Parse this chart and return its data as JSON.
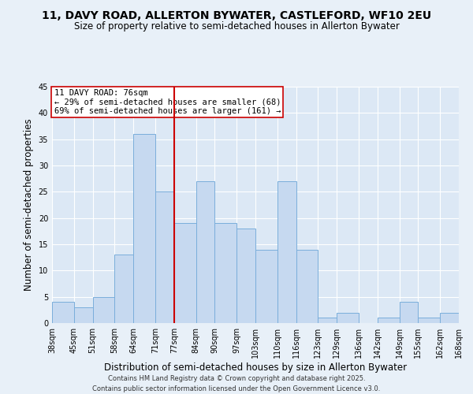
{
  "title": "11, DAVY ROAD, ALLERTON BYWATER, CASTLEFORD, WF10 2EU",
  "subtitle": "Size of property relative to semi-detached houses in Allerton Bywater",
  "xlabel": "Distribution of semi-detached houses by size in Allerton Bywater",
  "ylabel": "Number of semi-detached properties",
  "bins": [
    38,
    45,
    51,
    58,
    64,
    71,
    77,
    84,
    90,
    97,
    103,
    110,
    116,
    123,
    129,
    136,
    142,
    149,
    155,
    162,
    168
  ],
  "counts": [
    4,
    3,
    5,
    13,
    36,
    25,
    19,
    27,
    19,
    18,
    14,
    27,
    14,
    1,
    2,
    0,
    1,
    4,
    1,
    2
  ],
  "bar_color": "#c6d9f0",
  "bar_edge_color": "#7aaedb",
  "reference_line_x": 77,
  "reference_line_color": "#cc0000",
  "annotation_title": "11 DAVY ROAD: 76sqm",
  "annotation_line1": "← 29% of semi-detached houses are smaller (68)",
  "annotation_line2": "69% of semi-detached houses are larger (161) →",
  "annotation_box_color": "#ffffff",
  "annotation_box_edge_color": "#cc0000",
  "ylim": [
    0,
    45
  ],
  "yticks": [
    0,
    5,
    10,
    15,
    20,
    25,
    30,
    35,
    40,
    45
  ],
  "background_color": "#e8f0f8",
  "plot_background_color": "#dce8f5",
  "footer_line1": "Contains HM Land Registry data © Crown copyright and database right 2025.",
  "footer_line2": "Contains public sector information licensed under the Open Government Licence v3.0.",
  "title_fontsize": 10,
  "subtitle_fontsize": 8.5,
  "tick_label_fontsize": 7,
  "axis_label_fontsize": 8.5,
  "annotation_fontsize": 7.5
}
